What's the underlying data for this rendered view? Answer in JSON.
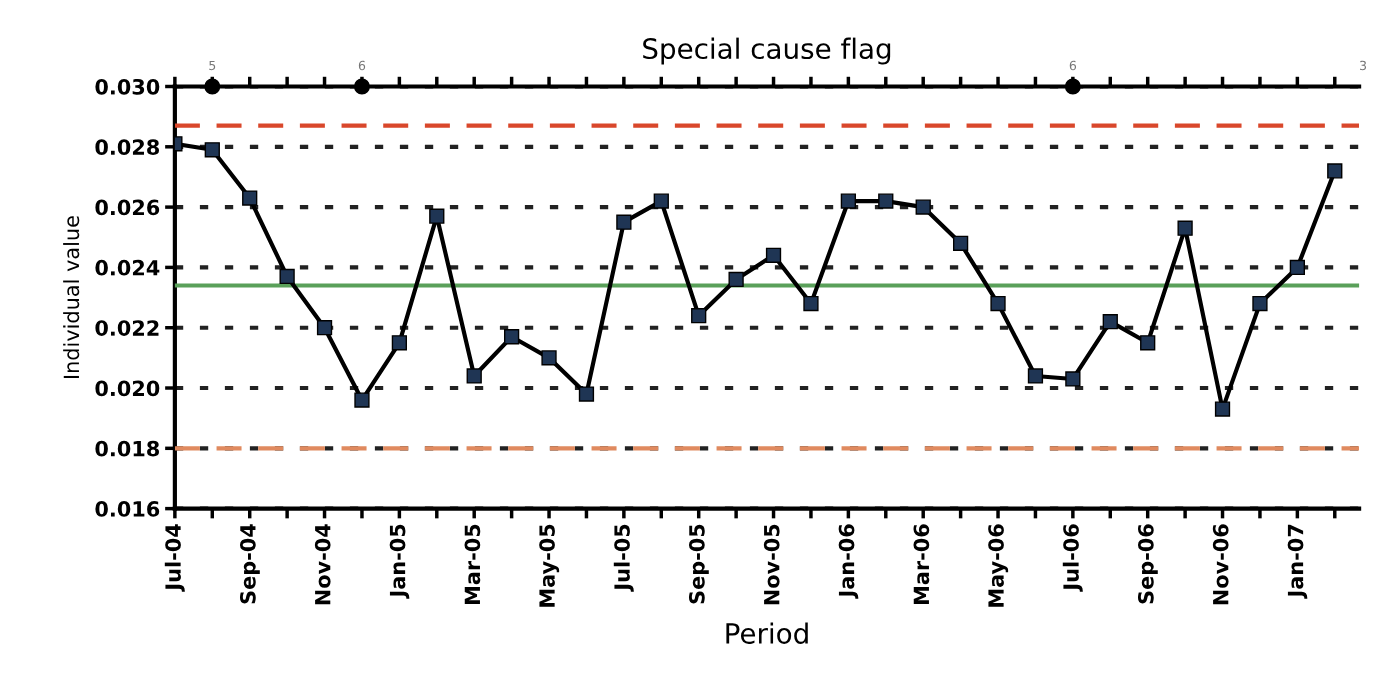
{
  "chart_data": {
    "type": "line",
    "title": "Special cause flag",
    "xlabel": "Period",
    "ylabel": "Individual value",
    "categories": [
      "Jul-04",
      null,
      "Sep-04",
      null,
      "Nov-04",
      null,
      "Jan-05",
      null,
      "Mar-05",
      null,
      "May-05",
      null,
      "Jul-05",
      null,
      "Sep-05",
      null,
      "Nov-05",
      null,
      "Jan-06",
      null,
      "Mar-06",
      null,
      "May-06",
      null,
      "Jul-06",
      null,
      "Sep-06",
      null,
      "Nov-06",
      null,
      "Jan-07",
      null
    ],
    "series": [
      {
        "color": "#000000",
        "marker": "square",
        "values": [
          0.0281,
          0.0279,
          0.0263,
          0.0237,
          0.022,
          0.0196,
          0.0215,
          0.0257,
          0.0204,
          0.0217,
          0.021,
          0.0198,
          0.0255,
          0.0262,
          0.0224,
          0.0236,
          0.0244,
          0.0228,
          0.0262,
          0.0262,
          0.026,
          0.0248,
          0.0228,
          0.0204,
          0.0203,
          0.0222,
          0.0215,
          0.0253,
          0.0193,
          0.0228,
          0.024,
          0.0272
        ]
      },
      {
        "type": "scatter",
        "color": "#000000",
        "marker": "circle",
        "values": [
          null,
          0.03,
          null,
          null,
          null,
          0.03,
          null,
          null,
          null,
          null,
          null,
          null,
          null,
          null,
          null,
          null,
          null,
          null,
          null,
          null,
          null,
          null,
          null,
          null,
          0.03,
          null,
          null,
          null,
          null,
          null,
          null,
          null
        ]
      }
    ],
    "annotations": [
      "5",
      "6",
      "6",
      "3"
    ],
    "ylim": [
      0.016,
      0.03
    ],
    "yticks": [
      {
        "value": 0.016,
        "label": "0.016"
      },
      {
        "value": 0.018,
        "label": "0.018"
      },
      {
        "value": 0.02,
        "label": "0.020"
      },
      {
        "value": 0.022,
        "label": "0.022"
      },
      {
        "value": 0.024,
        "label": "0.024"
      },
      {
        "value": 0.026,
        "label": "0.026"
      },
      {
        "value": 0.028,
        "label": "0.028"
      },
      {
        "value": 0.03,
        "label": "0.030"
      }
    ],
    "grid": "y",
    "line_style": "solid",
    "ref_lines": [
      {
        "axis": "y",
        "value": 0.0287,
        "color": "#d9472b",
        "line_style": "dashed"
      },
      {
        "axis": "y",
        "value": 0.0234,
        "color": "#5aa05a",
        "line_style": "solid"
      },
      {
        "axis": "y",
        "value": 0.018,
        "color": "#e08a5f",
        "line_style": "dashed"
      }
    ]
  }
}
